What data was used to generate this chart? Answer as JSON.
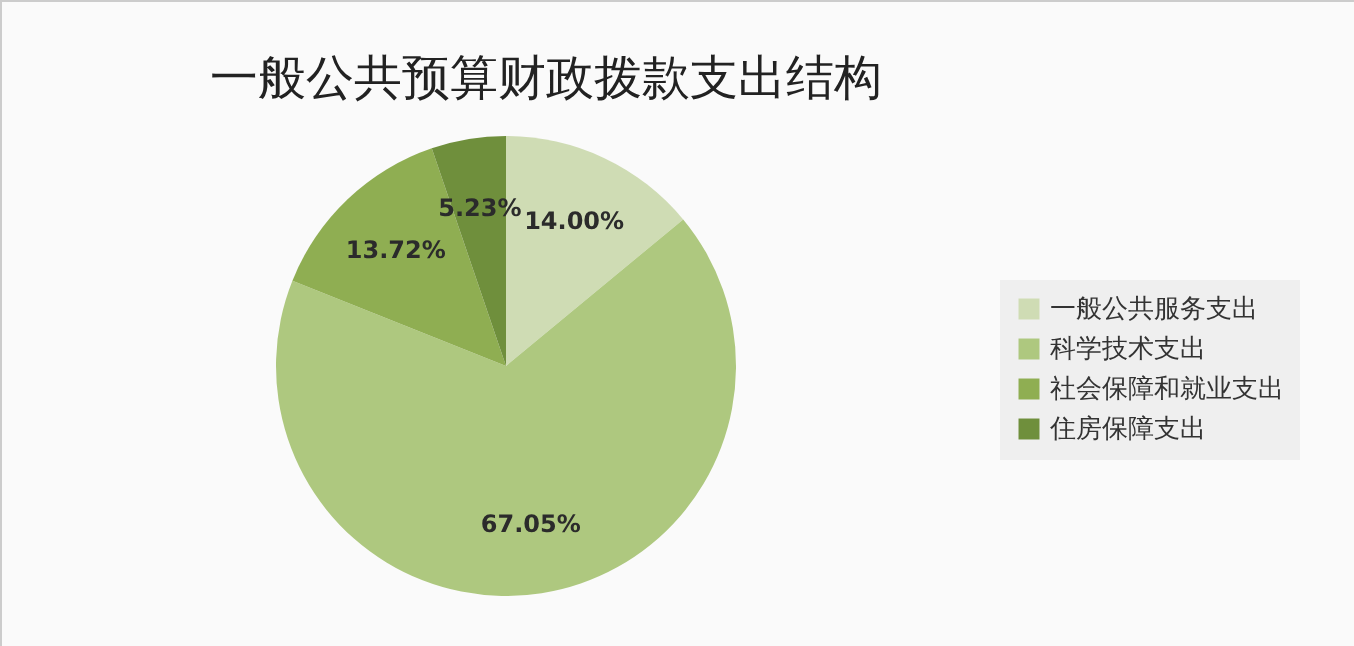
{
  "chart_data": {
    "type": "pie",
    "title": "一般公共预算财政拨款支出结构",
    "categories": [
      "一般公共服务支出",
      "科学技术支出",
      "社会保障和就业支出",
      "住房保障支出"
    ],
    "values": [
      14.0,
      67.05,
      13.72,
      5.23
    ],
    "value_labels": [
      "14.00%",
      "67.05%",
      "13.72%",
      "5.23%"
    ],
    "colors": [
      "#cfdcb4",
      "#aec87f",
      "#8fae52",
      "#6f8f3c"
    ],
    "legend": "right"
  }
}
